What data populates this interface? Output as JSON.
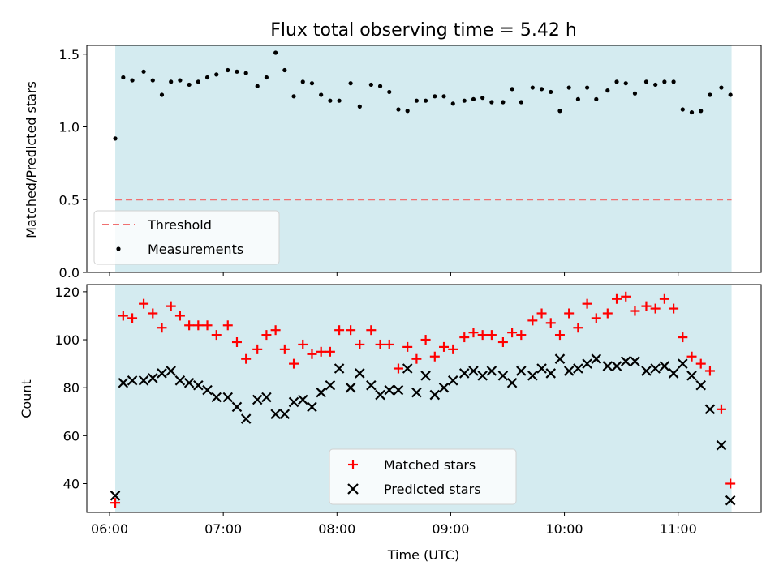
{
  "chart_data": [
    {
      "type": "scatter",
      "title": "Flux total observing time = 5.42 h",
      "ylabel": "Matched/Predicted stars",
      "xlabel": "",
      "ylim": [
        0,
        1.56
      ],
      "yticks": [
        "0.0",
        "0.5",
        "1.0",
        "1.5"
      ],
      "yticks_values": [
        0,
        0.5,
        1.0,
        1.5
      ],
      "grid": false,
      "legend_position": "lower-left",
      "shaded_region": {
        "x_start": 6.05,
        "x_end": 11.47,
        "color": "#d4ebf0"
      },
      "threshold": {
        "name": "Threshold",
        "y": 0.5,
        "x_start": 6.05,
        "x_end": 11.47,
        "color": "#f07070"
      },
      "series": [
        {
          "name": "Measurements",
          "color": "#000000",
          "x": [
            6.05,
            6.12,
            6.2,
            6.3,
            6.38,
            6.46,
            6.54,
            6.62,
            6.7,
            6.78,
            6.86,
            6.94,
            7.04,
            7.12,
            7.2,
            7.3,
            7.38,
            7.46,
            7.54,
            7.62,
            7.7,
            7.78,
            7.86,
            7.94,
            8.02,
            8.12,
            8.2,
            8.3,
            8.38,
            8.46,
            8.54,
            8.62,
            8.7,
            8.78,
            8.86,
            8.94,
            9.02,
            9.12,
            9.2,
            9.28,
            9.36,
            9.46,
            9.54,
            9.62,
            9.72,
            9.8,
            9.88,
            9.96,
            10.04,
            10.12,
            10.2,
            10.28,
            10.38,
            10.46,
            10.54,
            10.62,
            10.72,
            10.8,
            10.88,
            10.96,
            11.04,
            11.12,
            11.2,
            11.28,
            11.38,
            11.46
          ],
          "y": [
            0.92,
            1.34,
            1.32,
            1.38,
            1.32,
            1.22,
            1.31,
            1.32,
            1.29,
            1.31,
            1.34,
            1.36,
            1.39,
            1.38,
            1.37,
            1.28,
            1.34,
            1.51,
            1.39,
            1.21,
            1.31,
            1.3,
            1.22,
            1.18,
            1.18,
            1.3,
            1.14,
            1.29,
            1.28,
            1.24,
            1.12,
            1.11,
            1.18,
            1.18,
            1.21,
            1.21,
            1.16,
            1.18,
            1.19,
            1.2,
            1.17,
            1.17,
            1.26,
            1.17,
            1.27,
            1.26,
            1.24,
            1.11,
            1.27,
            1.19,
            1.27,
            1.19,
            1.25,
            1.31,
            1.3,
            1.23,
            1.31,
            1.29,
            1.31,
            1.31,
            1.12,
            1.1,
            1.11,
            1.22,
            1.27,
            1.22
          ]
        }
      ]
    },
    {
      "type": "scatter",
      "title": "",
      "ylabel": "Count",
      "xlabel": "Time (UTC)",
      "xlim": [
        5.8,
        11.73
      ],
      "xticks": [
        "06:00",
        "07:00",
        "08:00",
        "09:00",
        "10:00",
        "11:00"
      ],
      "xticks_values": [
        6,
        7,
        8,
        9,
        10,
        11
      ],
      "ylim": [
        28,
        123
      ],
      "yticks": [
        "40",
        "60",
        "80",
        "100",
        "120"
      ],
      "yticks_values": [
        40,
        60,
        80,
        100,
        120
      ],
      "grid": false,
      "legend_position": "lower-center",
      "series": [
        {
          "name": "Matched stars",
          "marker": "+",
          "color": "#ff0000",
          "x": [
            6.05,
            6.12,
            6.2,
            6.3,
            6.38,
            6.46,
            6.54,
            6.62,
            6.7,
            6.78,
            6.86,
            6.94,
            7.04,
            7.12,
            7.2,
            7.3,
            7.38,
            7.46,
            7.54,
            7.62,
            7.7,
            7.78,
            7.86,
            7.94,
            8.02,
            8.12,
            8.2,
            8.3,
            8.38,
            8.46,
            8.54,
            8.62,
            8.7,
            8.78,
            8.86,
            8.94,
            9.02,
            9.12,
            9.2,
            9.28,
            9.36,
            9.46,
            9.54,
            9.62,
            9.72,
            9.8,
            9.88,
            9.96,
            10.04,
            10.12,
            10.2,
            10.28,
            10.38,
            10.46,
            10.54,
            10.62,
            10.72,
            10.8,
            10.88,
            10.96,
            11.04,
            11.12,
            11.2,
            11.28,
            11.38,
            11.46
          ],
          "y": [
            32,
            110,
            109,
            115,
            111,
            105,
            114,
            110,
            106,
            106,
            106,
            102,
            106,
            99,
            92,
            96,
            102,
            104,
            96,
            90,
            98,
            94,
            95,
            95,
            104,
            104,
            98,
            104,
            98,
            98,
            88,
            97,
            92,
            100,
            93,
            97,
            96,
            101,
            103,
            102,
            102,
            99,
            103,
            102,
            108,
            111,
            107,
            102,
            111,
            105,
            115,
            109,
            111,
            117,
            118,
            112,
            114,
            113,
            117,
            113,
            101,
            93,
            90,
            87,
            71,
            40
          ]
        },
        {
          "name": "Predicted stars",
          "marker": "x",
          "color": "#000000",
          "x": [
            6.05,
            6.12,
            6.2,
            6.3,
            6.38,
            6.46,
            6.54,
            6.62,
            6.7,
            6.78,
            6.86,
            6.94,
            7.04,
            7.12,
            7.2,
            7.3,
            7.38,
            7.46,
            7.54,
            7.62,
            7.7,
            7.78,
            7.86,
            7.94,
            8.02,
            8.12,
            8.2,
            8.3,
            8.38,
            8.46,
            8.54,
            8.62,
            8.7,
            8.78,
            8.86,
            8.94,
            9.02,
            9.12,
            9.2,
            9.28,
            9.36,
            9.46,
            9.54,
            9.62,
            9.72,
            9.8,
            9.88,
            9.96,
            10.04,
            10.12,
            10.2,
            10.28,
            10.38,
            10.46,
            10.54,
            10.62,
            10.72,
            10.8,
            10.88,
            10.96,
            11.04,
            11.12,
            11.2,
            11.28,
            11.38,
            11.46
          ],
          "y": [
            35,
            82,
            83,
            83,
            84,
            86,
            87,
            83,
            82,
            81,
            79,
            76,
            76,
            72,
            67,
            75,
            76,
            69,
            69,
            74,
            75,
            72,
            78,
            81,
            88,
            80,
            86,
            81,
            77,
            79,
            79,
            88,
            78,
            85,
            77,
            80,
            83,
            86,
            87,
            85,
            87,
            85,
            82,
            87,
            85,
            88,
            86,
            92,
            87,
            88,
            90,
            92,
            89,
            89,
            91,
            91,
            87,
            88,
            89,
            86,
            90,
            85,
            81,
            71,
            56,
            33
          ]
        }
      ]
    }
  ]
}
